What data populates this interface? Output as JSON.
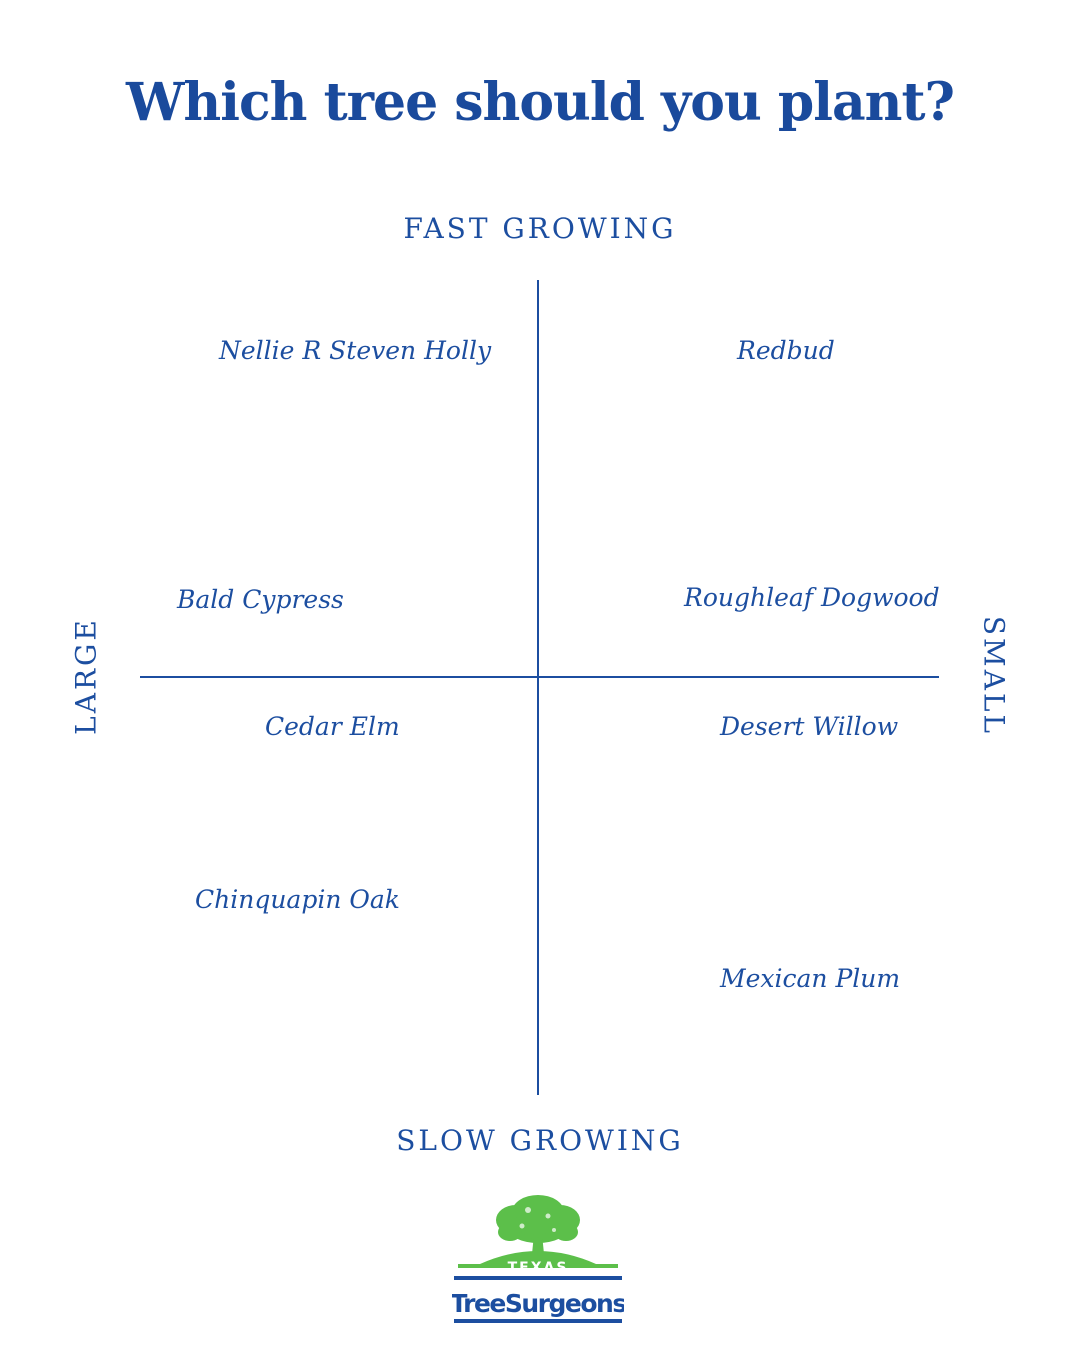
{
  "title": "Which tree should you plant?",
  "axes": {
    "top": "FAST GROWING",
    "bottom": "SLOW GROWING",
    "left": "LARGE",
    "right": "SMALL"
  },
  "trees": [
    {
      "name": "Nellie R Steven Holly",
      "quadrant": "large-fast"
    },
    {
      "name": "Redbud",
      "quadrant": "small-fast"
    },
    {
      "name": "Bald Cypress",
      "quadrant": "large-fast"
    },
    {
      "name": "Roughleaf Dogwood",
      "quadrant": "small-fast"
    },
    {
      "name": "Cedar Elm",
      "quadrant": "large-slow"
    },
    {
      "name": "Desert Willow",
      "quadrant": "small-slow"
    },
    {
      "name": "Chinquapin Oak",
      "quadrant": "large-slow"
    },
    {
      "name": "Mexican Plum",
      "quadrant": "small-slow"
    }
  ],
  "logo": {
    "top_text": "TEXAS",
    "main_text": "TreeSurgeons",
    "tree_icon": "tree-icon"
  },
  "colors": {
    "text": "#1c4ea0",
    "title": "#1a4a9c",
    "logo_green": "#5cbf4a",
    "logo_blue": "#1c4ea0"
  }
}
